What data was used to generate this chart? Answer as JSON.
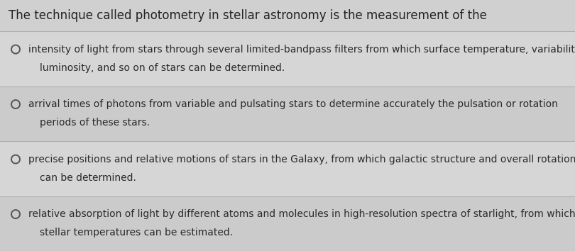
{
  "title": "The technique called photometry in stellar astronomy is the measurement of the",
  "title_fontsize": 12.0,
  "title_color": "#222222",
  "background_color": "#dcdcdc",
  "title_bg_color": "#d0d0d0",
  "option_bg_even": "#d6d6d6",
  "option_bg_odd": "#cbcbcb",
  "separator_color": "#b0b0b0",
  "circle_color": "#555555",
  "text_color": "#2a2a2a",
  "options": [
    {
      "line1": "intensity of light from stars through several limited-bandpass filters from which surface temperature, variability,",
      "line2": "luminosity, and so on of stars can be determined."
    },
    {
      "line1": "arrival times of photons from variable and pulsating stars to determine accurately the pulsation or rotation",
      "line2": "periods of these stars."
    },
    {
      "line1": "precise positions and relative motions of stars in the Galaxy, from which galactic structure and overall rotation",
      "line2": "can be determined."
    },
    {
      "line1": "relative absorption of light by different atoms and molecules in high-resolution spectra of starlight, from which",
      "line2": "stellar temperatures can be estimated."
    }
  ],
  "figwidth": 8.1,
  "figheight": 3.54,
  "dpi": 100
}
